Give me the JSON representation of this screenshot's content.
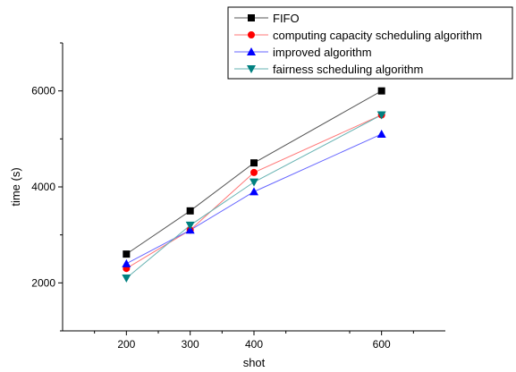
{
  "chart_data": {
    "type": "line",
    "xlabel": "shot",
    "ylabel": "time (s)",
    "x": [
      200,
      300,
      400,
      600
    ],
    "xticks": [
      200,
      300,
      400,
      600
    ],
    "xlim": [
      100,
      700
    ],
    "yticks": [
      2000,
      4000,
      6000
    ],
    "ylim": [
      1000,
      7000
    ],
    "legend_position": "top-right",
    "series": [
      {
        "name": "FIFO",
        "values": [
          2600,
          3500,
          4500,
          6000
        ],
        "color": "#000000",
        "line_color": "#555555",
        "marker": "square"
      },
      {
        "name": "computing capacity scheduling algorithm",
        "values": [
          2300,
          3100,
          4300,
          5500
        ],
        "color": "#ff0000",
        "line_color": "#ff7777",
        "marker": "circle"
      },
      {
        "name": "improved algorithm",
        "values": [
          2400,
          3100,
          3900,
          5100
        ],
        "color": "#0000ff",
        "line_color": "#6666ff",
        "marker": "triangle-up"
      },
      {
        "name": "fairness scheduling algorithm",
        "values": [
          2100,
          3200,
          4100,
          5500
        ],
        "color": "#008080",
        "line_color": "#66b2b2",
        "marker": "triangle-down"
      }
    ]
  }
}
